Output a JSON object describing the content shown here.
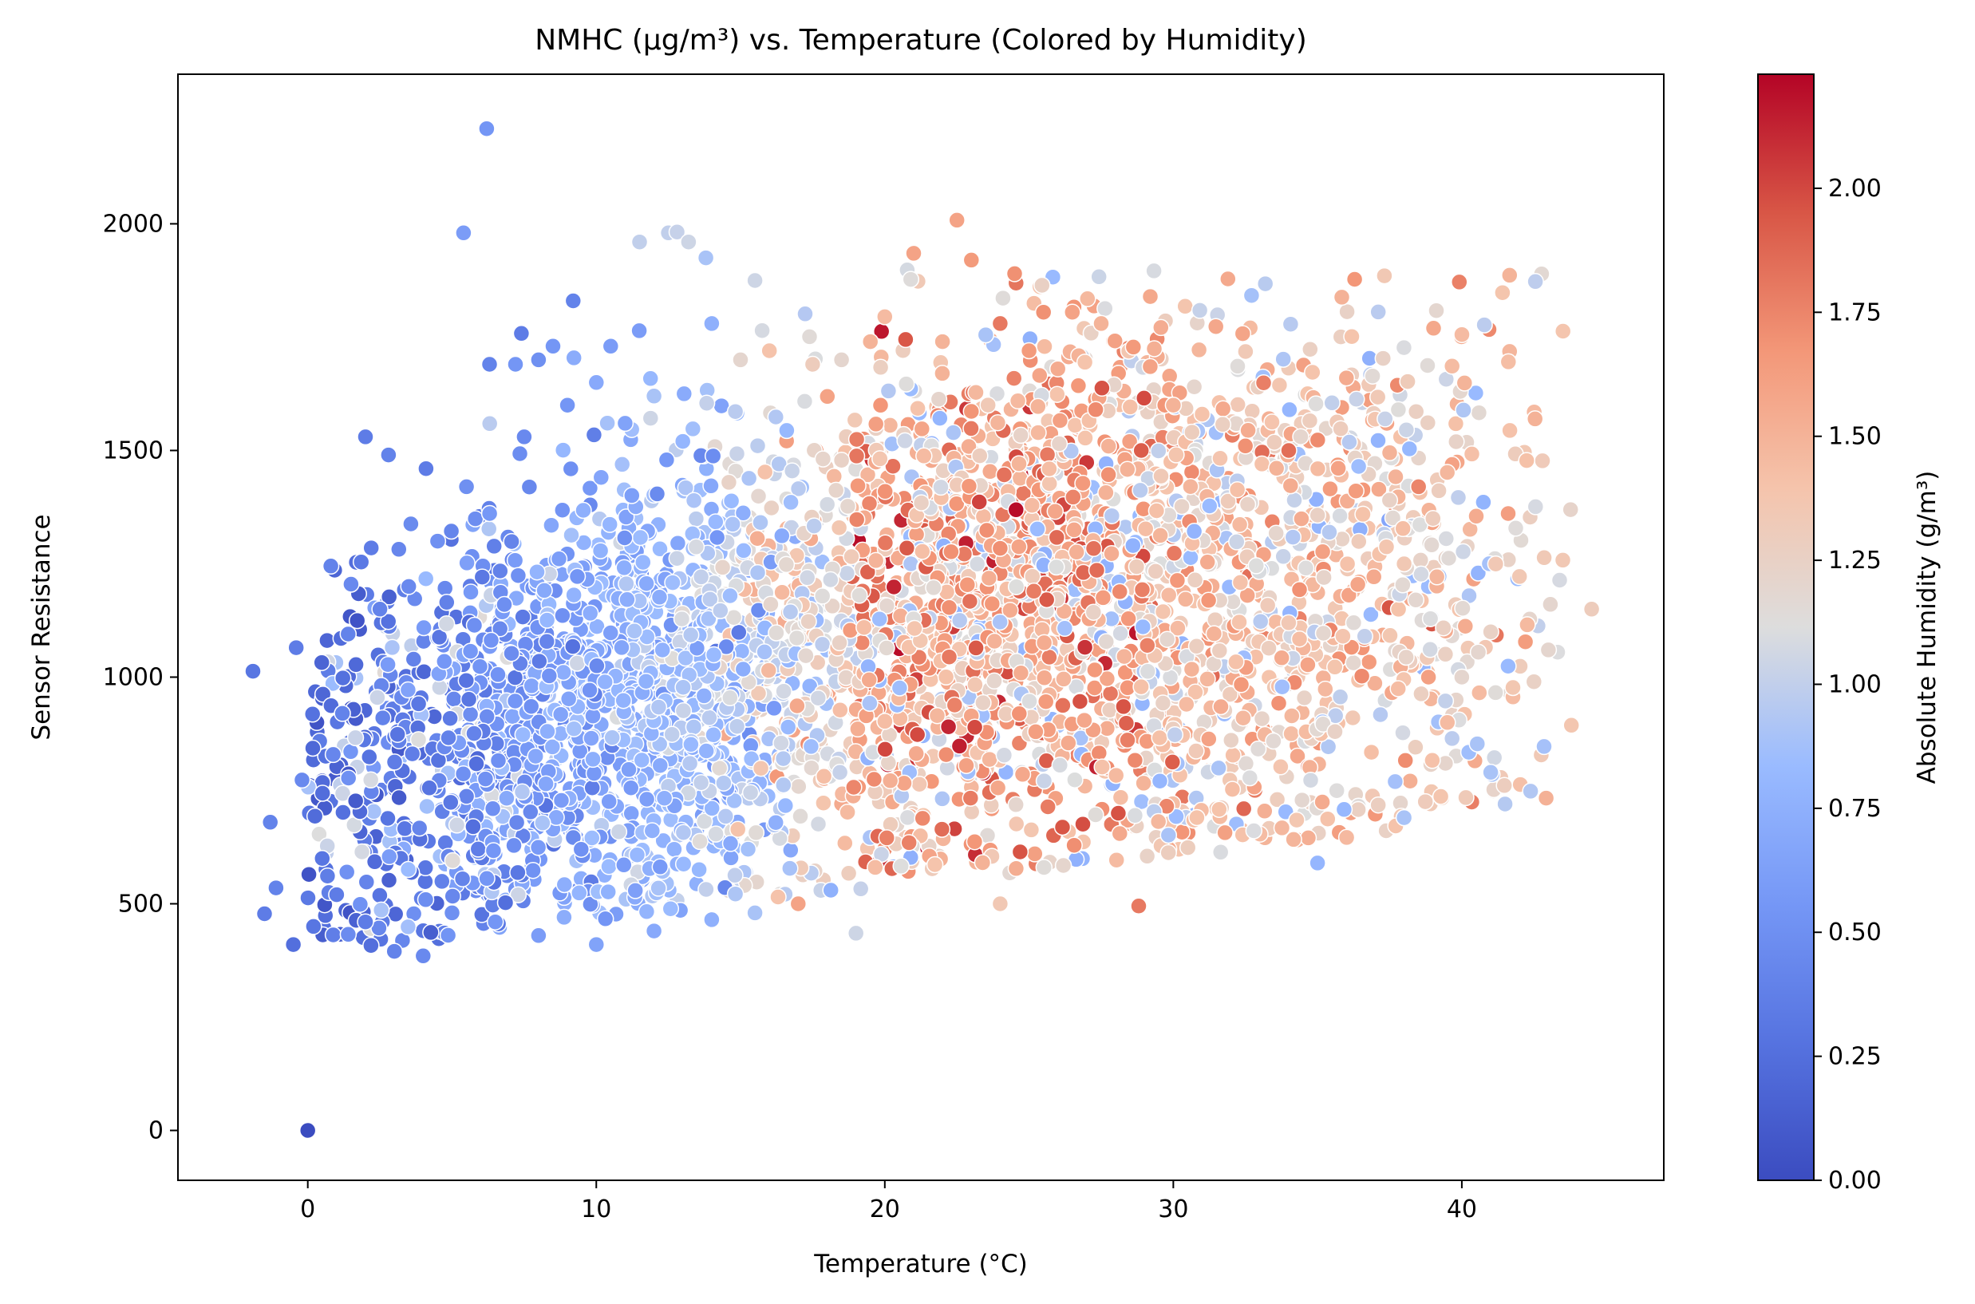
{
  "chart_data": {
    "type": "scatter",
    "title": "NMHC (µg/m³) vs. Temperature (Colored by Humidity)",
    "xlabel": "Temperature (°C)",
    "ylabel": "Sensor Resistance",
    "xlim": [
      -4.5,
      47
    ],
    "ylim": [
      -110,
      2330
    ],
    "xticks": [
      "0",
      "10",
      "20",
      "30",
      "40"
    ],
    "yticks": [
      "0",
      "500",
      "1000",
      "1500",
      "2000"
    ],
    "grid": false,
    "legend": "none",
    "colormap": "coolwarm",
    "colorbar": {
      "label": "Absolute Humidity (g/m³)",
      "range": [
        0.0,
        2.23
      ],
      "ticks": [
        "0.00",
        "0.25",
        "0.50",
        "0.75",
        "1.00",
        "1.25",
        "1.50",
        "1.75",
        "2.00"
      ],
      "low_color": "#3b4cc0",
      "mid_color": "#dddddd",
      "high_color": "#b40426"
    },
    "series": [
      {
        "columns": [
          "temperature",
          "sensor_resistance",
          "absolute_humidity"
        ],
        "points": [
          [
            0.0,
            0,
            0.0
          ],
          [
            6.2,
            2210,
            0.55
          ],
          [
            5.4,
            1980,
            0.6
          ],
          [
            12.5,
            1980,
            1.0
          ],
          [
            12.8,
            1982,
            1.02
          ],
          [
            11.5,
            1960,
            1.0
          ],
          [
            13.2,
            1960,
            1.05
          ],
          [
            13.8,
            1925,
            0.9
          ],
          [
            22.5,
            2008,
            1.6
          ],
          [
            21.0,
            1935,
            1.6
          ],
          [
            23.0,
            1920,
            1.65
          ],
          [
            24.5,
            1890,
            1.7
          ],
          [
            15.5,
            1875,
            1.05
          ],
          [
            9.2,
            1830,
            0.4
          ],
          [
            25.5,
            1805,
            1.7
          ],
          [
            26.5,
            1805,
            1.6
          ],
          [
            27.5,
            1780,
            1.5
          ],
          [
            6.3,
            1690,
            0.4
          ],
          [
            7.2,
            1690,
            0.55
          ],
          [
            -1.9,
            1013,
            0.3
          ],
          [
            -0.4,
            1065,
            0.35
          ],
          [
            -1.3,
            680,
            0.4
          ],
          [
            -0.2,
            773,
            0.45
          ],
          [
            -1.1,
            535,
            0.4
          ],
          [
            -1.5,
            478,
            0.35
          ],
          [
            -0.5,
            410,
            0.25
          ],
          [
            2.0,
            1530,
            0.35
          ],
          [
            2.8,
            1490,
            0.4
          ],
          [
            4.1,
            1460,
            0.35
          ],
          [
            2.2,
            1285,
            0.35
          ],
          [
            0.8,
            1245,
            0.4
          ],
          [
            1.5,
            1205,
            0.45
          ],
          [
            2.5,
            1150,
            0.4
          ],
          [
            1.4,
            1095,
            0.4
          ],
          [
            35.5,
            1605,
            1.0
          ],
          [
            35.8,
            1548,
            1.3
          ],
          [
            36.0,
            1660,
            1.55
          ],
          [
            34.0,
            1500,
            1.85
          ],
          [
            37.5,
            1495,
            1.5
          ],
          [
            38.5,
            1420,
            1.75
          ],
          [
            43.5,
            1258,
            1.35
          ],
          [
            44.5,
            1150,
            1.3
          ],
          [
            40.5,
            1355,
            1.55
          ],
          [
            42.0,
            1222,
            1.35
          ],
          [
            41.5,
            720,
            0.95
          ],
          [
            41.0,
            790,
            0.9
          ],
          [
            28.8,
            495,
            1.8
          ],
          [
            24.0,
            500,
            1.35
          ],
          [
            19.0,
            435,
            1.05
          ],
          [
            16.3,
            515,
            1.4
          ],
          [
            17.0,
            500,
            1.6
          ],
          [
            35.0,
            590,
            0.8
          ],
          [
            38.0,
            690,
            0.9
          ],
          [
            29.2,
            1685,
            1.6
          ],
          [
            30.0,
            1600,
            1.5
          ],
          [
            31.0,
            1580,
            1.4
          ],
          [
            32.5,
            1510,
            1.7
          ],
          [
            33.5,
            1518,
            1.3
          ],
          [
            10.5,
            1730,
            0.6
          ],
          [
            8.5,
            1730,
            0.55
          ],
          [
            8.0,
            1700,
            0.5
          ],
          [
            10.0,
            1650,
            0.7
          ],
          [
            12.0,
            1620,
            0.9
          ],
          [
            14.0,
            1780,
            0.75
          ],
          [
            15.0,
            1700,
            1.2
          ],
          [
            16.0,
            1720,
            1.4
          ],
          [
            17.5,
            1690,
            1.3
          ],
          [
            18.5,
            1700,
            1.2
          ],
          [
            19.5,
            1740,
            1.5
          ],
          [
            20.0,
            1795,
            1.45
          ],
          [
            22.0,
            1740,
            1.5
          ],
          [
            23.5,
            1755,
            0.9
          ],
          [
            24.0,
            1780,
            1.8
          ],
          [
            25.0,
            1720,
            1.65
          ],
          [
            26.0,
            1680,
            1.55
          ],
          [
            5.0,
            480,
            0.5
          ],
          [
            6.5,
            460,
            0.55
          ],
          [
            8.0,
            430,
            0.6
          ],
          [
            10.0,
            410,
            0.65
          ],
          [
            12.0,
            440,
            0.7
          ],
          [
            14.0,
            465,
            0.75
          ],
          [
            15.5,
            480,
            0.9
          ],
          [
            3.0,
            395,
            0.4
          ],
          [
            4.0,
            385,
            0.45
          ],
          [
            2.0,
            460,
            0.35
          ],
          [
            1.0,
            520,
            0.35
          ],
          [
            0.5,
            600,
            0.3
          ],
          [
            0.2,
            450,
            0.3
          ],
          [
            2.6,
            910,
            0.4
          ],
          [
            1.2,
            920,
            0.4
          ],
          [
            3.5,
            1200,
            0.45
          ],
          [
            4.5,
            1300,
            0.5
          ],
          [
            5.5,
            1420,
            0.5
          ],
          [
            7.5,
            1530,
            0.45
          ],
          [
            9.0,
            1600,
            0.55
          ],
          [
            11.0,
            1560,
            0.65
          ],
          [
            13.0,
            1520,
            0.8
          ],
          [
            40.0,
            1000,
            1.2
          ],
          [
            39.5,
            900,
            1.45
          ],
          [
            41.0,
            1100,
            1.25
          ],
          [
            42.5,
            990,
            1.25
          ],
          [
            43.0,
            1060,
            1.2
          ],
          [
            38.0,
            1250,
            1.35
          ],
          [
            39.0,
            1350,
            1.3
          ]
        ]
      }
    ]
  }
}
